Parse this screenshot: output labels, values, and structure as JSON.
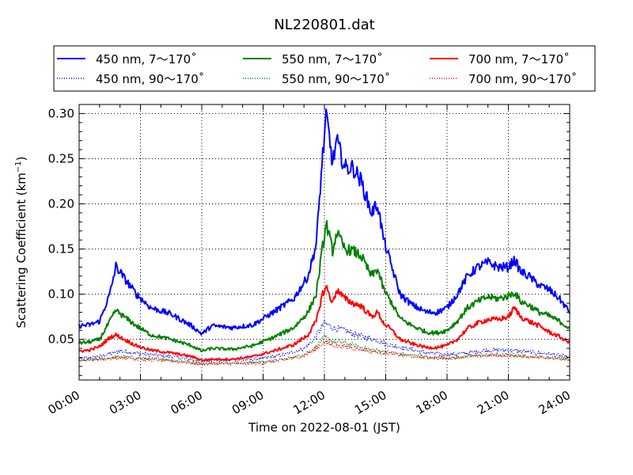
{
  "chart_data": {
    "type": "line",
    "title": "NL220801.dat",
    "xlabel": "Time on 2022-08-01 (JST)",
    "ylabel": "Scattering Coefficient (km",
    "ylabel_sup": "−1",
    "ylabel_close": ")",
    "xlim": [
      "00:00",
      "24:00"
    ],
    "ylim": [
      0.005,
      0.31
    ],
    "xticks": [
      "00:00",
      "03:00",
      "06:00",
      "09:00",
      "12:00",
      "15:00",
      "18:00",
      "21:00",
      "24:00"
    ],
    "yticks": [
      "0.05",
      "0.10",
      "0.15",
      "0.20",
      "0.25",
      "0.30"
    ],
    "grid": true,
    "legend_placement": "top, above plot, 3 columns",
    "series": [
      {
        "name": "450 nm, 7～170˚",
        "color": "#0000ff",
        "style": "solid",
        "x_hours": [
          0,
          0.5,
          1,
          1.5,
          1.8,
          2.2,
          2.8,
          3.5,
          4.5,
          5.5,
          6,
          6.5,
          7.5,
          8.5,
          9.5,
          10.5,
          11.2,
          11.6,
          11.9,
          12.1,
          12.4,
          12.6,
          13,
          13.4,
          13.8,
          14.3,
          14.6,
          14.9,
          15.3,
          15.7,
          16.3,
          17,
          17.5,
          18,
          18.5,
          19,
          19.5,
          20,
          20.5,
          21,
          21.3,
          21.6,
          22,
          22.5,
          23,
          23.5,
          24
        ],
        "y": [
          0.065,
          0.066,
          0.07,
          0.1,
          0.131,
          0.118,
          0.1,
          0.085,
          0.078,
          0.065,
          0.056,
          0.065,
          0.063,
          0.066,
          0.08,
          0.095,
          0.12,
          0.155,
          0.25,
          0.298,
          0.245,
          0.27,
          0.24,
          0.24,
          0.225,
          0.19,
          0.2,
          0.16,
          0.13,
          0.1,
          0.088,
          0.08,
          0.08,
          0.085,
          0.1,
          0.12,
          0.13,
          0.135,
          0.13,
          0.13,
          0.138,
          0.125,
          0.12,
          0.11,
          0.105,
          0.095,
          0.08
        ]
      },
      {
        "name": "550 nm, 7～170˚",
        "color": "#008000",
        "style": "solid",
        "x_hours": [
          0,
          0.5,
          1,
          1.5,
          1.8,
          2.2,
          2.8,
          3.5,
          4.5,
          5.5,
          6,
          6.5,
          7.5,
          8.5,
          9.5,
          10.5,
          11.2,
          11.6,
          11.9,
          12.1,
          12.4,
          12.6,
          13,
          13.4,
          13.8,
          14.3,
          14.6,
          14.9,
          15.3,
          15.7,
          16.3,
          17,
          17.5,
          18,
          18.5,
          19,
          19.5,
          20,
          20.5,
          21,
          21.3,
          21.6,
          22,
          22.5,
          23,
          23.5,
          24
        ],
        "y": [
          0.046,
          0.047,
          0.05,
          0.07,
          0.082,
          0.075,
          0.065,
          0.055,
          0.05,
          0.043,
          0.037,
          0.04,
          0.039,
          0.043,
          0.052,
          0.063,
          0.08,
          0.1,
          0.15,
          0.178,
          0.148,
          0.168,
          0.15,
          0.148,
          0.142,
          0.12,
          0.128,
          0.105,
          0.09,
          0.073,
          0.065,
          0.058,
          0.057,
          0.06,
          0.07,
          0.085,
          0.092,
          0.097,
          0.095,
          0.098,
          0.102,
          0.092,
          0.088,
          0.08,
          0.076,
          0.07,
          0.062
        ]
      },
      {
        "name": "700 nm, 7～170˚",
        "color": "#ff0000",
        "style": "solid",
        "x_hours": [
          0,
          0.5,
          1,
          1.5,
          1.8,
          2.2,
          2.8,
          3.5,
          4.5,
          5.5,
          6,
          6.5,
          7.5,
          8.5,
          9.5,
          10.5,
          11.2,
          11.6,
          11.9,
          12.1,
          12.4,
          12.6,
          13,
          13.4,
          13.8,
          14.3,
          14.6,
          14.9,
          15.3,
          15.7,
          16.3,
          17,
          17.5,
          18,
          18.5,
          19,
          19.5,
          20,
          20.5,
          21,
          21.3,
          21.6,
          22,
          22.5,
          23,
          23.5,
          24
        ],
        "y": [
          0.037,
          0.038,
          0.042,
          0.052,
          0.055,
          0.05,
          0.043,
          0.038,
          0.035,
          0.031,
          0.027,
          0.028,
          0.028,
          0.031,
          0.037,
          0.044,
          0.055,
          0.07,
          0.1,
          0.108,
          0.09,
          0.105,
          0.095,
          0.09,
          0.087,
          0.075,
          0.08,
          0.068,
          0.06,
          0.05,
          0.045,
          0.041,
          0.041,
          0.043,
          0.05,
          0.062,
          0.068,
          0.072,
          0.072,
          0.075,
          0.085,
          0.075,
          0.07,
          0.065,
          0.058,
          0.053,
          0.046
        ]
      },
      {
        "name": "450 nm, 90～170˚",
        "color": "#0000ff",
        "style": "dotted",
        "x_hours": [
          0,
          1,
          2,
          3,
          4,
          5,
          6,
          7,
          8,
          9,
          10,
          11,
          11.5,
          12,
          12.5,
          13,
          13.5,
          14,
          14.5,
          15,
          16,
          17,
          18,
          19,
          20,
          21,
          22,
          23,
          24
        ],
        "y": [
          0.028,
          0.031,
          0.037,
          0.034,
          0.032,
          0.029,
          0.026,
          0.027,
          0.027,
          0.029,
          0.033,
          0.04,
          0.05,
          0.068,
          0.062,
          0.06,
          0.055,
          0.052,
          0.05,
          0.045,
          0.04,
          0.035,
          0.033,
          0.035,
          0.038,
          0.038,
          0.036,
          0.034,
          0.03
        ]
      },
      {
        "name": "550 nm, 90～170˚",
        "color": "#008000",
        "style": "dotted",
        "x_hours": [
          0,
          1,
          2,
          3,
          4,
          5,
          6,
          7,
          8,
          9,
          10,
          11,
          11.5,
          12,
          12.5,
          13,
          13.5,
          14,
          14.5,
          15,
          16,
          17,
          18,
          19,
          20,
          21,
          22,
          23,
          24
        ],
        "y": [
          0.026,
          0.028,
          0.031,
          0.029,
          0.028,
          0.026,
          0.023,
          0.024,
          0.024,
          0.025,
          0.028,
          0.033,
          0.04,
          0.052,
          0.047,
          0.046,
          0.043,
          0.04,
          0.038,
          0.036,
          0.033,
          0.03,
          0.029,
          0.031,
          0.033,
          0.033,
          0.031,
          0.03,
          0.027
        ]
      },
      {
        "name": "700 nm, 90～170˚",
        "color": "#ff0000",
        "style": "dotted",
        "x_hours": [
          0,
          1,
          2,
          3,
          4,
          5,
          6,
          7,
          8,
          9,
          10,
          11,
          11.5,
          12,
          12.5,
          13,
          13.5,
          14,
          14.5,
          15,
          16,
          17,
          18,
          19,
          20,
          21,
          22,
          23,
          24
        ],
        "y": [
          0.026,
          0.028,
          0.03,
          0.028,
          0.027,
          0.025,
          0.023,
          0.023,
          0.023,
          0.024,
          0.027,
          0.032,
          0.038,
          0.047,
          0.043,
          0.042,
          0.04,
          0.038,
          0.036,
          0.035,
          0.032,
          0.03,
          0.029,
          0.031,
          0.032,
          0.032,
          0.031,
          0.03,
          0.028
        ]
      }
    ]
  }
}
